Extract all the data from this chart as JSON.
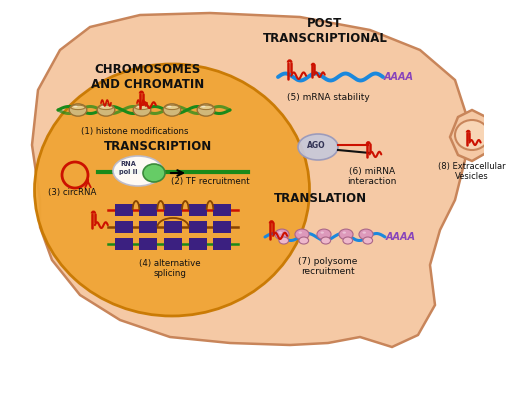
{
  "bg_color": "#FFFFFF",
  "outer_cell_color": "#F5C9A5",
  "outer_cell_edge": "#C8855A",
  "inner_nucleus_color": "#F0A535",
  "inner_nucleus_edge": "#C87800",
  "text_chromosomes": "CHROMOSOMES\nAND CHROMATIN",
  "text_transcription": "TRANSCRIPTION",
  "text_post_transcriptional": "POST\nTRANSCRIPTIONAL",
  "text_translation": "TRANSLATION",
  "label_1": "(1) histone modifications",
  "label_2": "(2) TF recruitment",
  "label_3": "(3) circRNA",
  "label_4": "(4) alternative\nsplicing",
  "label_5": "(5) mRNA stability",
  "label_6": "(6) miRNA\ninteraction",
  "label_7": "(7) polysome\nrecruitment",
  "label_8": "(8) Extracellular\nVesicles",
  "green_color": "#1A8A1A",
  "red_color": "#CC1100",
  "blue_color": "#1A7ACC",
  "purple_color": "#6644AA",
  "pink_color": "#CC88BB",
  "dark_purple": "#3B2080",
  "orange_color": "#DD6600",
  "gray_color": "#AAAAAA",
  "black_color": "#111111",
  "rna_pol_bg": "#E8E8F0",
  "ago_bg": "#C8C8D8",
  "nucleosome_tan": "#D0B87A",
  "nucleosome_edge": "#9A7030",
  "mRNA_blue": "#1A88DD",
  "poly_pink": "#CC88AA",
  "brown_color": "#884400"
}
